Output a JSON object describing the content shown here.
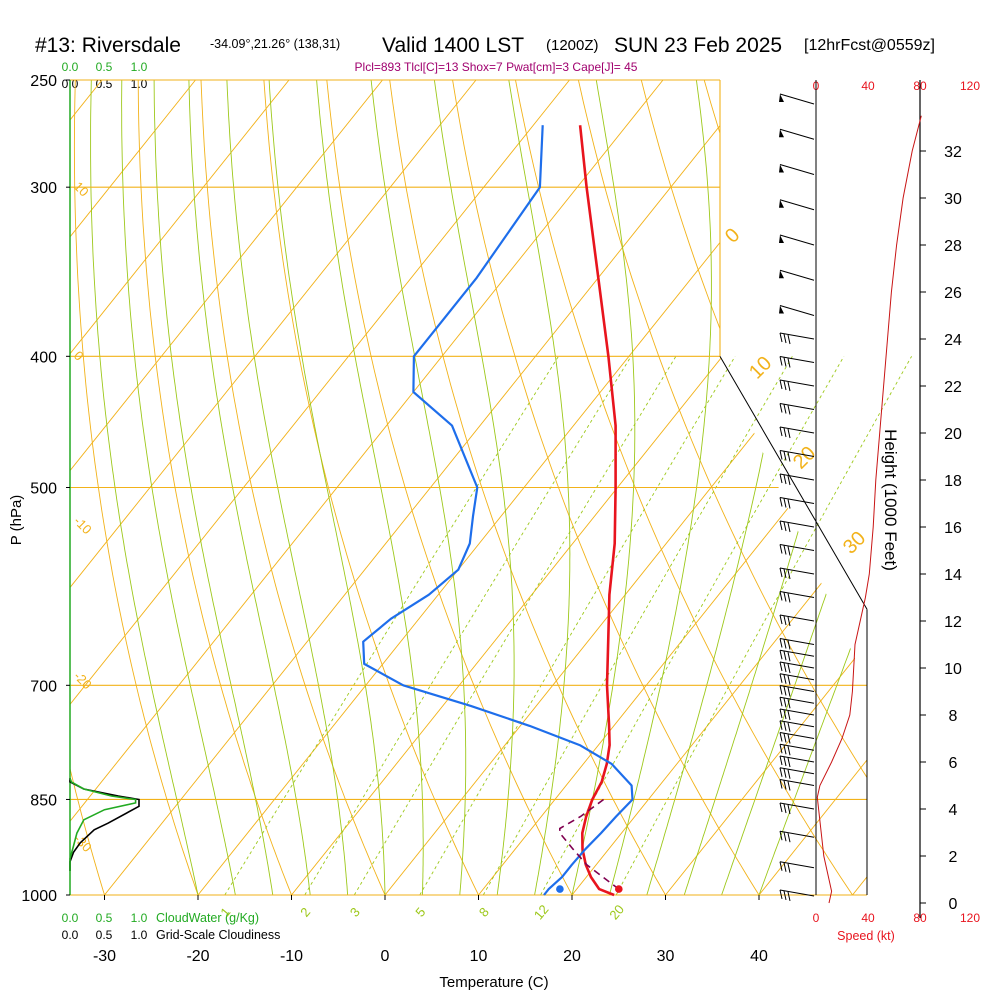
{
  "header": {
    "title": "#13: Riversdale",
    "coords": "-34.09°,21.26° (138,31)",
    "valid": "Valid 1400 LST",
    "utc": "(1200Z)",
    "date": "SUN 23 Feb 2025",
    "forecast": "[12hrFcst@0559z]",
    "indices": "Plcl=893 Tlcl[C]=13 Shox=7 Pwat[cm]=3 Cape[J]= 45"
  },
  "axes": {
    "x_label": "Temperature (C)",
    "y_label": "P (hPa)",
    "height_label": "Height (1000 Feet)",
    "speed_label": "Speed (kt)"
  },
  "cloud": {
    "water_ticks": [
      "0.0",
      "0.5",
      "1.0"
    ],
    "cover_ticks": [
      "0.0",
      "0.5",
      "1.0"
    ],
    "water_label": "CloudWater (g/Kg)",
    "cover_label": "Grid-Scale Cloudiness",
    "cloud_water_color": "#22aa22",
    "cloudiness_color": "#000000"
  },
  "speed_ticks": [
    "0",
    "40",
    "80",
    "120"
  ],
  "colors": {
    "temperature": "#e8141e",
    "dewpoint": "#1e6eeb",
    "parcel": "#800050",
    "isotherm": "#f2b21a",
    "dry_adiabat": "#9dc81a",
    "moist_adiabat": "#9dc81a",
    "indices_text": "#a0006e",
    "wind_speed": "#c81414"
  },
  "chart_data": {
    "type": "skew-t",
    "title": "#13: Riversdale",
    "xlabel": "Temperature (C)",
    "ylabel": "P (hPa)",
    "pressure_ticks": [
      250,
      300,
      400,
      500,
      700,
      850,
      1000
    ],
    "temperature_ticks": [
      -30,
      -20,
      -10,
      0,
      10,
      20,
      30,
      40
    ],
    "height_ticks_kft": [
      0,
      2,
      4,
      6,
      8,
      10,
      12,
      14,
      16,
      18,
      20,
      22,
      24,
      26,
      28,
      30,
      32
    ],
    "isotherm_labels": [
      {
        "text": "0",
        "value": 0
      },
      {
        "text": "10",
        "value": 10
      },
      {
        "text": "20",
        "value": 20
      },
      {
        "text": "30",
        "value": 30
      }
    ],
    "left_isotherm_labels": [
      {
        "text": "10",
        "p": 300
      },
      {
        "text": "0",
        "p": 400
      },
      {
        "text": "-10",
        "p": 530
      },
      {
        "text": "-20",
        "p": 690
      },
      {
        "text": "-30",
        "p": 910
      }
    ],
    "mixing_ratio_labels": [
      "1",
      "2",
      "3",
      "5",
      "8",
      "12",
      "20"
    ],
    "temperature": {
      "name": "Temperature",
      "p": [
        1000,
        990,
        970,
        950,
        925,
        900,
        875,
        850,
        825,
        800,
        775,
        750,
        700,
        650,
        600,
        550,
        500,
        450,
        400,
        350,
        300,
        270
      ],
      "t": [
        24.5,
        22.4,
        20.5,
        18.9,
        17.2,
        15.8,
        14.8,
        14.0,
        13.5,
        12.5,
        11.2,
        9.5,
        5.8,
        2.2,
        -1.7,
        -5.5,
        -10.2,
        -15.5,
        -22.2,
        -30.0,
        -39.0,
        -45.0
      ]
    },
    "dewpoint": {
      "name": "Dewpoint",
      "p": [
        1000,
        990,
        970,
        950,
        925,
        900,
        875,
        850,
        830,
        800,
        775,
        750,
        725,
        700,
        675,
        650,
        625,
        600,
        575,
        550,
        525,
        500,
        450,
        425,
        400,
        350,
        300,
        270
      ],
      "td": [
        17.0,
        17.0,
        17.4,
        17.4,
        17.5,
        17.8,
        18.0,
        18.3,
        17.0,
        13.0,
        8.0,
        1.0,
        -7.0,
        -16.0,
        -22.0,
        -24.0,
        -23.0,
        -21.0,
        -20.0,
        -21.0,
        -23.0,
        -25.0,
        -33.0,
        -40.0,
        -43.0,
        -43.0,
        -44.0,
        -49.0
      ]
    },
    "surface_points": {
      "t": 24.5,
      "td": 18.2,
      "p": 990
    },
    "parcel": {
      "name": "Parcel",
      "p": [
        990,
        950,
        925,
        900,
        893,
        875,
        850
      ],
      "t": [
        24.5,
        19.0,
        16.2,
        13.4,
        13.0,
        14.2,
        15.2
      ]
    },
    "cloud_water": {
      "p": [
        960,
        940,
        920,
        900,
        880,
        865,
        855,
        850,
        845,
        835,
        825,
        820
      ],
      "v": [
        0.0,
        0.0,
        0.05,
        0.1,
        0.2,
        0.5,
        0.95,
        0.95,
        0.6,
        0.2,
        0.02,
        0.0
      ]
    },
    "cloudiness": {
      "p": [
        960,
        945,
        930,
        915,
        895,
        885,
        860,
        855,
        850,
        845,
        835,
        825,
        820
      ],
      "v": [
        0.0,
        0.0,
        0.05,
        0.15,
        0.35,
        0.55,
        1.0,
        1.0,
        1.0,
        0.7,
        0.2,
        0.0,
        0.0
      ]
    },
    "wind_speed": {
      "name": "Speed (kt)",
      "height_kft": [
        0,
        0.5,
        1,
        2,
        3,
        4,
        4.5,
        5,
        6,
        7,
        8,
        9,
        10,
        11,
        12,
        13,
        14,
        16,
        18,
        20,
        22,
        24,
        26,
        28,
        30,
        32,
        33.5
      ],
      "kt": [
        10,
        12,
        10,
        6,
        4,
        2,
        1,
        3,
        12,
        20,
        26,
        28,
        29,
        30,
        34,
        38,
        41,
        44,
        46,
        49,
        52,
        55,
        58,
        62,
        67,
        74,
        81
      ]
    },
    "wind_barbs_kft": [
      0.3,
      1.5,
      2.8,
      4.0,
      5.0,
      5.5,
      6.0,
      6.5,
      7.0,
      7.5,
      8.0,
      8.5,
      9.0,
      9.5,
      10.0,
      10.5,
      11.0,
      12.0,
      13.0,
      14.0,
      15.0,
      16.0,
      17.0,
      18.0,
      19.0,
      20.0,
      21.0,
      22.0,
      23.0,
      24.0,
      25.0,
      26.5,
      28.0,
      29.5,
      31.0,
      32.5,
      34.0
    ],
    "ylim_hpa": [
      1000,
      250
    ],
    "xlim_c": [
      -35,
      45
    ],
    "grid": true
  }
}
